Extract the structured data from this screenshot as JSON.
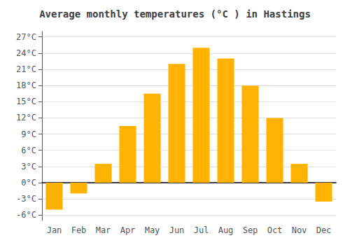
{
  "chart_data": {
    "type": "bar",
    "title": "Average monthly temperatures (°C ) in Hastings",
    "categories": [
      "Jan",
      "Feb",
      "Mar",
      "Apr",
      "May",
      "Jun",
      "Jul",
      "Aug",
      "Sep",
      "Oct",
      "Nov",
      "Dec"
    ],
    "values": [
      -5.0,
      -2.0,
      3.5,
      10.5,
      16.5,
      22.0,
      25.0,
      23.0,
      18.0,
      12.0,
      3.5,
      -3.5
    ],
    "color": "#FFB300",
    "ylim": [
      -7,
      28
    ],
    "yticks": [
      {
        "value": -6,
        "label": "-6°C"
      },
      {
        "value": -3,
        "label": "-3°C"
      },
      {
        "value": 0,
        "label": "0°C"
      },
      {
        "value": 3,
        "label": "3°C"
      },
      {
        "value": 6,
        "label": "6°C"
      },
      {
        "value": 9,
        "label": "9°C"
      },
      {
        "value": 12,
        "label": "12°C"
      },
      {
        "value": 15,
        "label": "15°C"
      },
      {
        "value": 18,
        "label": "18°C"
      },
      {
        "value": 21,
        "label": "21°C"
      },
      {
        "value": 24,
        "label": "24°C"
      },
      {
        "value": 27,
        "label": "27°C"
      }
    ],
    "grid": true
  }
}
